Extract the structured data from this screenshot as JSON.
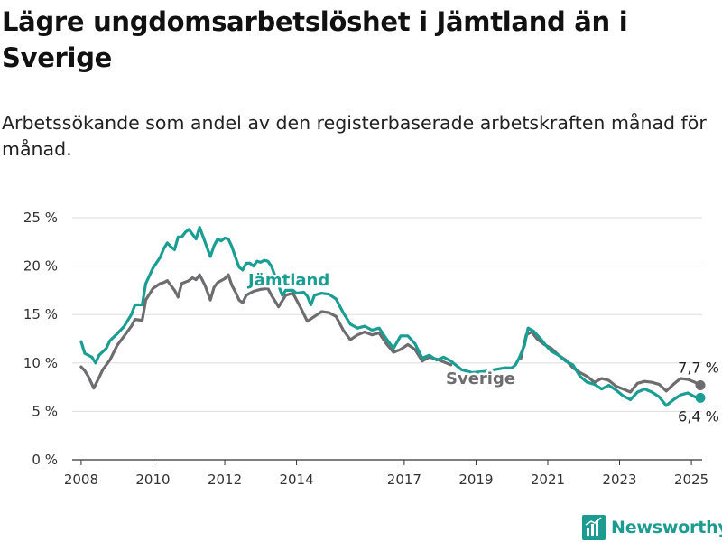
{
  "title": "Lägre ungdomsarbetslöshet i Jämtland än i Sverige",
  "subtitle": "Arbetssökande som andel av den registerbaserade arbetskraften månad för månad.",
  "brand": "Newsworthy",
  "colors": {
    "jamtland": "#1a9e93",
    "sverige": "#6d6d6f",
    "grid": "#dddddd",
    "axis": "#333333",
    "brand": "#1c9b91"
  },
  "chart_data": {
    "type": "line",
    "title": "Lägre ungdomsarbetslöshet i Jämtland än i Sverige",
    "subtitle": "Arbetssökande som andel av den registerbaserade arbetskraften månad för månad.",
    "xlabel": "",
    "ylabel": "",
    "ylim": [
      0,
      25
    ],
    "xlim": [
      2007.75,
      2025.3
    ],
    "grid": true,
    "y_ticks": [
      0,
      5,
      10,
      15,
      20,
      25
    ],
    "y_tick_labels": [
      "0 %",
      "5 %",
      "10 %",
      "15 %",
      "20 %",
      "25 %"
    ],
    "x_ticks": [
      2008,
      2010,
      2012,
      2014,
      2017,
      2019,
      2021,
      2023,
      2025
    ],
    "x_tick_labels": [
      "2008",
      "2010",
      "2012",
      "2014",
      "2017",
      "2019",
      "2021",
      "2023",
      "2025"
    ],
    "series": [
      {
        "name": "Jämtland",
        "end_label": "6,4 %",
        "points": [
          [
            2008.0,
            12.2
          ],
          [
            2008.1,
            11.0
          ],
          [
            2008.3,
            10.6
          ],
          [
            2008.4,
            10.0
          ],
          [
            2008.5,
            10.8
          ],
          [
            2008.7,
            11.5
          ],
          [
            2008.8,
            12.3
          ],
          [
            2009.0,
            13.0
          ],
          [
            2009.2,
            13.8
          ],
          [
            2009.4,
            15.0
          ],
          [
            2009.5,
            16.0
          ],
          [
            2009.7,
            16.0
          ],
          [
            2009.8,
            18.2
          ],
          [
            2010.0,
            19.8
          ],
          [
            2010.2,
            20.9
          ],
          [
            2010.3,
            21.8
          ],
          [
            2010.4,
            22.4
          ],
          [
            2010.5,
            22.0
          ],
          [
            2010.6,
            21.7
          ],
          [
            2010.7,
            23.0
          ],
          [
            2010.8,
            23.0
          ],
          [
            2010.9,
            23.5
          ],
          [
            2011.0,
            23.8
          ],
          [
            2011.1,
            23.3
          ],
          [
            2011.2,
            22.8
          ],
          [
            2011.3,
            24.0
          ],
          [
            2011.4,
            23.0
          ],
          [
            2011.5,
            22.0
          ],
          [
            2011.6,
            21.0
          ],
          [
            2011.7,
            22.1
          ],
          [
            2011.8,
            22.8
          ],
          [
            2011.9,
            22.6
          ],
          [
            2012.0,
            22.9
          ],
          [
            2012.1,
            22.8
          ],
          [
            2012.2,
            22.0
          ],
          [
            2012.3,
            20.9
          ],
          [
            2012.4,
            19.9
          ],
          [
            2012.5,
            19.6
          ],
          [
            2012.6,
            20.3
          ],
          [
            2012.7,
            20.3
          ],
          [
            2012.8,
            20.0
          ],
          [
            2012.9,
            20.5
          ],
          [
            2013.0,
            20.4
          ],
          [
            2013.1,
            20.6
          ],
          [
            2013.2,
            20.5
          ],
          [
            2013.3,
            20.0
          ],
          [
            2013.5,
            18.0
          ],
          [
            2013.6,
            17.0
          ],
          [
            2013.7,
            17.5
          ],
          [
            2013.9,
            17.5
          ],
          [
            2014.0,
            17.2
          ],
          [
            2014.2,
            17.3
          ],
          [
            2014.3,
            16.9
          ],
          [
            2014.4,
            16.0
          ],
          [
            2014.5,
            17.0
          ],
          [
            2014.7,
            17.2
          ],
          [
            2014.9,
            17.1
          ],
          [
            2015.1,
            16.6
          ],
          [
            2015.3,
            15.2
          ],
          [
            2015.5,
            14.0
          ],
          [
            2015.7,
            13.6
          ],
          [
            2015.9,
            13.8
          ],
          [
            2016.1,
            13.4
          ],
          [
            2016.3,
            13.6
          ],
          [
            2016.5,
            12.5
          ],
          [
            2016.7,
            11.5
          ],
          [
            2016.9,
            12.8
          ],
          [
            2017.1,
            12.8
          ],
          [
            2017.3,
            12.0
          ],
          [
            2017.5,
            10.5
          ],
          [
            2017.7,
            10.8
          ],
          [
            2017.9,
            10.3
          ],
          [
            2018.1,
            10.6
          ],
          [
            2018.3,
            10.2
          ],
          [
            2018.6,
            9.3
          ],
          [
            2018.9,
            9.0
          ],
          [
            2019.2,
            9.1
          ],
          [
            2019.5,
            9.3
          ],
          [
            2019.8,
            9.5
          ],
          [
            2020.0,
            9.5
          ],
          [
            2020.1,
            9.8
          ],
          [
            2020.2,
            10.5
          ],
          [
            2020.35,
            11.8
          ],
          [
            2020.45,
            13.6
          ],
          [
            2020.6,
            13.3
          ],
          [
            2020.8,
            12.5
          ],
          [
            2020.95,
            11.8
          ],
          [
            2021.1,
            11.2
          ],
          [
            2021.3,
            10.8
          ],
          [
            2021.5,
            10.2
          ],
          [
            2021.7,
            9.8
          ],
          [
            2021.9,
            8.6
          ],
          [
            2022.1,
            8.0
          ],
          [
            2022.3,
            7.8
          ],
          [
            2022.5,
            7.3
          ],
          [
            2022.7,
            7.7
          ],
          [
            2022.9,
            7.2
          ],
          [
            2023.1,
            6.6
          ],
          [
            2023.3,
            6.2
          ],
          [
            2023.5,
            7.0
          ],
          [
            2023.7,
            7.3
          ],
          [
            2023.9,
            7.0
          ],
          [
            2024.1,
            6.5
          ],
          [
            2024.3,
            5.6
          ],
          [
            2024.5,
            6.2
          ],
          [
            2024.7,
            6.7
          ],
          [
            2024.9,
            6.9
          ],
          [
            2025.1,
            6.5
          ],
          [
            2025.25,
            6.4
          ]
        ]
      },
      {
        "name": "Sverige",
        "end_label": "7,7 %",
        "points": [
          [
            2008.0,
            9.6
          ],
          [
            2008.1,
            9.2
          ],
          [
            2008.2,
            8.6
          ],
          [
            2008.35,
            7.4
          ],
          [
            2008.5,
            8.5
          ],
          [
            2008.6,
            9.3
          ],
          [
            2008.8,
            10.3
          ],
          [
            2009.0,
            11.8
          ],
          [
            2009.2,
            12.8
          ],
          [
            2009.4,
            13.8
          ],
          [
            2009.5,
            14.5
          ],
          [
            2009.7,
            14.4
          ],
          [
            2009.8,
            16.5
          ],
          [
            2010.0,
            17.7
          ],
          [
            2010.2,
            18.2
          ],
          [
            2010.3,
            18.3
          ],
          [
            2010.4,
            18.5
          ],
          [
            2010.6,
            17.5
          ],
          [
            2010.7,
            16.8
          ],
          [
            2010.8,
            18.2
          ],
          [
            2011.0,
            18.5
          ],
          [
            2011.1,
            18.8
          ],
          [
            2011.2,
            18.6
          ],
          [
            2011.3,
            19.1
          ],
          [
            2011.45,
            18.0
          ],
          [
            2011.6,
            16.5
          ],
          [
            2011.7,
            17.8
          ],
          [
            2011.8,
            18.3
          ],
          [
            2012.0,
            18.7
          ],
          [
            2012.1,
            19.1
          ],
          [
            2012.2,
            18.0
          ],
          [
            2012.3,
            17.3
          ],
          [
            2012.4,
            16.5
          ],
          [
            2012.5,
            16.2
          ],
          [
            2012.6,
            17.0
          ],
          [
            2012.8,
            17.4
          ],
          [
            2013.0,
            17.6
          ],
          [
            2013.2,
            17.7
          ],
          [
            2013.3,
            17.0
          ],
          [
            2013.5,
            15.8
          ],
          [
            2013.7,
            17.0
          ],
          [
            2013.9,
            17.2
          ],
          [
            2014.1,
            15.8
          ],
          [
            2014.3,
            14.3
          ],
          [
            2014.5,
            14.8
          ],
          [
            2014.7,
            15.3
          ],
          [
            2014.9,
            15.2
          ],
          [
            2015.1,
            14.8
          ],
          [
            2015.3,
            13.4
          ],
          [
            2015.5,
            12.4
          ],
          [
            2015.7,
            12.9
          ],
          [
            2015.9,
            13.2
          ],
          [
            2016.1,
            12.9
          ],
          [
            2016.3,
            13.1
          ],
          [
            2016.5,
            12.0
          ],
          [
            2016.7,
            11.1
          ],
          [
            2016.9,
            11.4
          ],
          [
            2017.1,
            11.9
          ],
          [
            2017.3,
            11.4
          ],
          [
            2017.5,
            10.2
          ],
          [
            2017.7,
            10.6
          ],
          [
            2017.9,
            10.4
          ],
          [
            2018.1,
            10.1
          ],
          [
            2018.3,
            9.8
          ]
        ],
        "points_late": [
          [
            2020.25,
            10.5
          ],
          [
            2020.4,
            12.9
          ],
          [
            2020.55,
            13.2
          ],
          [
            2020.7,
            12.5
          ],
          [
            2020.9,
            11.9
          ],
          [
            2021.1,
            11.5
          ],
          [
            2021.3,
            10.8
          ],
          [
            2021.5,
            10.3
          ],
          [
            2021.7,
            9.5
          ],
          [
            2021.9,
            9.0
          ],
          [
            2022.1,
            8.6
          ],
          [
            2022.3,
            8.0
          ],
          [
            2022.5,
            8.4
          ],
          [
            2022.7,
            8.2
          ],
          [
            2022.9,
            7.6
          ],
          [
            2023.1,
            7.3
          ],
          [
            2023.3,
            7.0
          ],
          [
            2023.5,
            7.9
          ],
          [
            2023.7,
            8.1
          ],
          [
            2023.9,
            8.0
          ],
          [
            2024.1,
            7.8
          ],
          [
            2024.3,
            7.1
          ],
          [
            2024.5,
            7.8
          ],
          [
            2024.7,
            8.4
          ],
          [
            2024.9,
            8.3
          ],
          [
            2025.1,
            8.0
          ],
          [
            2025.25,
            7.7
          ]
        ]
      }
    ],
    "series_labels": {
      "jamtland": "Jämtland",
      "sverige": "Sverige"
    }
  }
}
